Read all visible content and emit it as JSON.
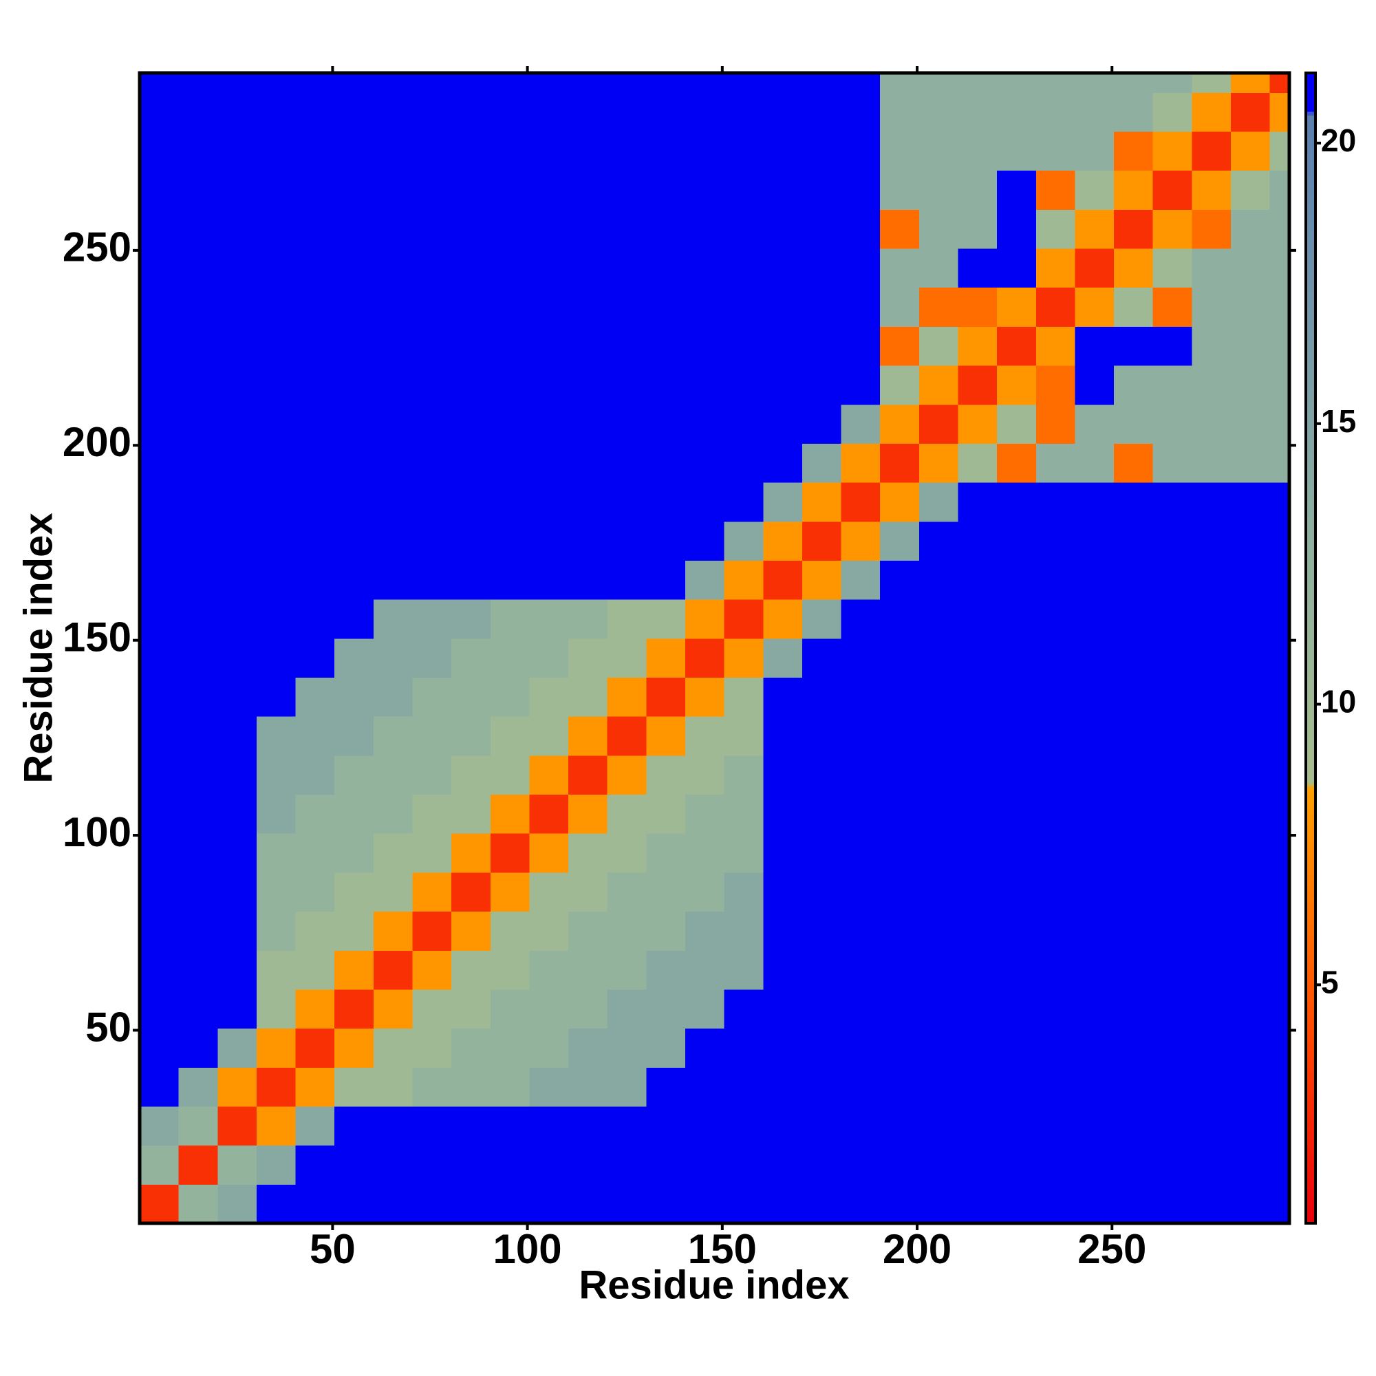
{
  "chart_data": {
    "type": "heatmap",
    "xlabel": "Residue index",
    "ylabel": "Residue index",
    "xlim": [
      0.5,
      295.5
    ],
    "ylim": [
      0.5,
      295.5
    ],
    "xticks": [
      50,
      100,
      150,
      200,
      250
    ],
    "yticks": [
      50,
      100,
      150,
      200,
      250
    ],
    "clim": [
      0.75,
      21.25
    ],
    "cticks": [
      5,
      10,
      15,
      20
    ],
    "colorscale": [
      [
        0.75,
        "#e8000b"
      ],
      [
        4,
        "#ff4500"
      ],
      [
        8.5,
        "#ffa000"
      ],
      [
        8.6,
        "#a7bd8e"
      ],
      [
        13,
        "#8fb0a0"
      ],
      [
        20.5,
        "#5a7fb0"
      ],
      [
        20.6,
        "#0000f5"
      ],
      [
        21.25,
        "#0000f5"
      ]
    ],
    "x": [
      5.5,
      15.5,
      25.5,
      35.5,
      45.5,
      55.5,
      65.5,
      75.5,
      85.5,
      95.5,
      105.5,
      115.5,
      125.5,
      135.5,
      145.5,
      155.5,
      165.5,
      175.5,
      185.5,
      195.5,
      205.5,
      215.5,
      225.5,
      235.5,
      245.5,
      255.5,
      265.5,
      275.5,
      285.5,
      295.5
    ],
    "y": [
      5.5,
      15.5,
      25.5,
      35.5,
      45.5,
      55.5,
      65.5,
      75.5,
      85.5,
      95.5,
      105.5,
      115.5,
      125.5,
      135.5,
      145.5,
      155.5,
      165.5,
      175.5,
      185.5,
      195.5,
      205.5,
      215.5,
      225.5,
      235.5,
      245.5,
      255.5,
      265.5,
      275.5,
      285.5,
      295.5
    ],
    "z": [
      [
        3,
        12,
        14,
        21,
        21,
        21,
        21,
        21,
        21,
        21,
        21,
        21,
        21,
        21,
        21,
        21,
        21,
        21,
        21,
        21,
        21,
        21,
        21,
        21,
        21,
        21,
        21,
        21,
        21,
        21
      ],
      [
        12,
        3,
        12,
        14,
        21,
        21,
        21,
        21,
        21,
        21,
        21,
        21,
        21,
        21,
        21,
        21,
        21,
        21,
        21,
        21,
        21,
        21,
        21,
        21,
        21,
        21,
        21,
        21,
        21,
        21
      ],
      [
        14,
        12,
        3,
        8,
        14,
        21,
        21,
        21,
        21,
        21,
        21,
        21,
        21,
        21,
        21,
        21,
        21,
        21,
        21,
        21,
        21,
        21,
        21,
        21,
        21,
        21,
        21,
        21,
        21,
        21
      ],
      [
        21,
        14,
        8,
        3,
        8,
        10,
        10,
        12,
        12,
        12,
        14,
        14,
        14,
        21,
        21,
        21,
        21,
        21,
        21,
        21,
        21,
        21,
        21,
        21,
        21,
        21,
        21,
        21,
        21,
        21
      ],
      [
        21,
        21,
        14,
        8,
        3,
        8,
        10,
        10,
        12,
        12,
        12,
        14,
        14,
        14,
        21,
        21,
        21,
        21,
        21,
        21,
        21,
        21,
        21,
        21,
        21,
        21,
        21,
        21,
        21,
        21
      ],
      [
        21,
        21,
        21,
        10,
        8,
        3,
        8,
        10,
        10,
        12,
        12,
        12,
        14,
        14,
        14,
        21,
        21,
        21,
        21,
        21,
        21,
        21,
        21,
        21,
        21,
        21,
        21,
        21,
        21,
        21
      ],
      [
        21,
        21,
        21,
        10,
        10,
        8,
        3,
        8,
        10,
        10,
        12,
        12,
        12,
        14,
        14,
        14,
        21,
        21,
        21,
        21,
        21,
        21,
        21,
        21,
        21,
        21,
        21,
        21,
        21,
        21
      ],
      [
        21,
        21,
        21,
        12,
        10,
        10,
        8,
        3,
        8,
        10,
        10,
        12,
        12,
        12,
        14,
        14,
        21,
        21,
        21,
        21,
        21,
        21,
        21,
        21,
        21,
        21,
        21,
        21,
        21,
        21
      ],
      [
        21,
        21,
        21,
        12,
        12,
        10,
        10,
        8,
        3,
        8,
        10,
        10,
        12,
        12,
        12,
        14,
        21,
        21,
        21,
        21,
        21,
        21,
        21,
        21,
        21,
        21,
        21,
        21,
        21,
        21
      ],
      [
        21,
        21,
        21,
        12,
        12,
        12,
        10,
        10,
        8,
        3,
        8,
        10,
        10,
        12,
        12,
        12,
        21,
        21,
        21,
        21,
        21,
        21,
        21,
        21,
        21,
        21,
        21,
        21,
        21,
        21
      ],
      [
        21,
        21,
        21,
        14,
        12,
        12,
        12,
        10,
        10,
        8,
        3,
        8,
        10,
        10,
        12,
        12,
        21,
        21,
        21,
        21,
        21,
        21,
        21,
        21,
        21,
        21,
        21,
        21,
        21,
        21
      ],
      [
        21,
        21,
        21,
        14,
        14,
        12,
        12,
        12,
        10,
        10,
        8,
        3,
        8,
        10,
        10,
        12,
        21,
        21,
        21,
        21,
        21,
        21,
        21,
        21,
        21,
        21,
        21,
        21,
        21,
        21
      ],
      [
        21,
        21,
        21,
        14,
        14,
        14,
        12,
        12,
        12,
        10,
        10,
        8,
        3,
        8,
        10,
        10,
        21,
        21,
        21,
        21,
        21,
        21,
        21,
        21,
        21,
        21,
        21,
        21,
        21,
        21
      ],
      [
        21,
        21,
        21,
        21,
        14,
        14,
        14,
        12,
        12,
        12,
        10,
        10,
        8,
        3,
        8,
        10,
        21,
        21,
        21,
        21,
        21,
        21,
        21,
        21,
        21,
        21,
        21,
        21,
        21,
        21
      ],
      [
        21,
        21,
        21,
        21,
        21,
        14,
        14,
        14,
        12,
        12,
        12,
        10,
        10,
        8,
        3,
        8,
        14,
        21,
        21,
        21,
        21,
        21,
        21,
        21,
        21,
        21,
        21,
        21,
        21,
        21
      ],
      [
        21,
        21,
        21,
        21,
        21,
        21,
        14,
        14,
        14,
        12,
        12,
        12,
        10,
        10,
        8,
        3,
        8,
        14,
        21,
        21,
        21,
        21,
        21,
        21,
        21,
        21,
        21,
        21,
        21,
        21
      ],
      [
        21,
        21,
        21,
        21,
        21,
        21,
        21,
        21,
        21,
        21,
        21,
        21,
        21,
        21,
        14,
        8,
        3,
        8,
        14,
        21,
        21,
        21,
        21,
        21,
        21,
        21,
        21,
        21,
        21,
        21
      ],
      [
        21,
        21,
        21,
        21,
        21,
        21,
        21,
        21,
        21,
        21,
        21,
        21,
        21,
        21,
        21,
        14,
        8,
        3,
        8,
        14,
        21,
        21,
        21,
        21,
        21,
        21,
        21,
        21,
        21,
        21
      ],
      [
        21,
        21,
        21,
        21,
        21,
        21,
        21,
        21,
        21,
        21,
        21,
        21,
        21,
        21,
        21,
        21,
        14,
        8,
        3,
        8,
        14,
        21,
        21,
        21,
        21,
        21,
        21,
        21,
        21,
        21
      ],
      [
        21,
        21,
        21,
        21,
        21,
        21,
        21,
        21,
        21,
        21,
        21,
        21,
        21,
        21,
        21,
        21,
        21,
        14,
        8,
        3,
        8,
        10,
        6,
        13,
        13,
        6,
        13,
        13,
        13,
        13
      ],
      [
        21,
        21,
        21,
        21,
        21,
        21,
        21,
        21,
        21,
        21,
        21,
        21,
        21,
        21,
        21,
        21,
        21,
        21,
        14,
        8,
        3,
        8,
        10,
        6,
        13,
        13,
        13,
        13,
        13,
        13
      ],
      [
        21,
        21,
        21,
        21,
        21,
        21,
        21,
        21,
        21,
        21,
        21,
        21,
        21,
        21,
        21,
        21,
        21,
        21,
        21,
        10,
        8,
        3,
        8,
        6,
        21,
        13,
        13,
        13,
        13,
        13
      ],
      [
        21,
        21,
        21,
        21,
        21,
        21,
        21,
        21,
        21,
        21,
        21,
        21,
        21,
        21,
        21,
        21,
        21,
        21,
        21,
        6,
        10,
        8,
        3,
        8,
        21,
        21,
        21,
        13,
        13,
        13
      ],
      [
        21,
        21,
        21,
        21,
        21,
        21,
        21,
        21,
        21,
        21,
        21,
        21,
        21,
        21,
        21,
        21,
        21,
        21,
        21,
        13,
        6,
        6,
        8,
        3,
        8,
        10,
        6,
        13,
        13,
        13
      ],
      [
        21,
        21,
        21,
        21,
        21,
        21,
        21,
        21,
        21,
        21,
        21,
        21,
        21,
        21,
        21,
        21,
        21,
        21,
        21,
        13,
        13,
        21,
        21,
        8,
        3,
        8,
        10,
        13,
        13,
        13
      ],
      [
        21,
        21,
        21,
        21,
        21,
        21,
        21,
        21,
        21,
        21,
        21,
        21,
        21,
        21,
        21,
        21,
        21,
        21,
        21,
        6,
        13,
        13,
        21,
        10,
        8,
        3,
        8,
        6,
        13,
        13
      ],
      [
        21,
        21,
        21,
        21,
        21,
        21,
        21,
        21,
        21,
        21,
        21,
        21,
        21,
        21,
        21,
        21,
        21,
        21,
        21,
        13,
        13,
        13,
        21,
        6,
        10,
        8,
        3,
        8,
        10,
        13
      ],
      [
        21,
        21,
        21,
        21,
        21,
        21,
        21,
        21,
        21,
        21,
        21,
        21,
        21,
        21,
        21,
        21,
        21,
        21,
        21,
        13,
        13,
        13,
        13,
        13,
        13,
        6,
        8,
        3,
        8,
        10
      ],
      [
        21,
        21,
        21,
        21,
        21,
        21,
        21,
        21,
        21,
        21,
        21,
        21,
        21,
        21,
        21,
        21,
        21,
        21,
        21,
        13,
        13,
        13,
        13,
        13,
        13,
        13,
        10,
        8,
        3,
        8
      ],
      [
        21,
        21,
        21,
        21,
        21,
        21,
        21,
        21,
        21,
        21,
        21,
        21,
        21,
        21,
        21,
        21,
        21,
        21,
        21,
        13,
        13,
        13,
        13,
        13,
        13,
        13,
        13,
        10,
        8,
        3
      ]
    ]
  }
}
